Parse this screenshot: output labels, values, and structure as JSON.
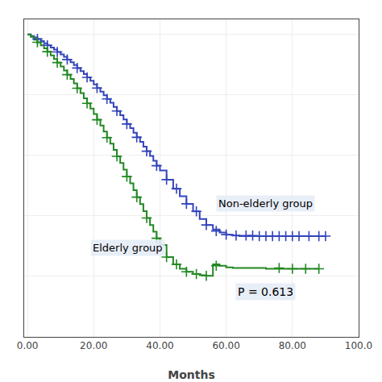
{
  "chart_data": {
    "type": "line",
    "xlabel": "Months",
    "xlim": [
      -1,
      100
    ],
    "ylim": [
      0,
      1.05
    ],
    "xticks": [
      {
        "value": 0,
        "label": "0.00"
      },
      {
        "value": 20,
        "label": "20.00"
      },
      {
        "value": 40,
        "label": "40.00"
      },
      {
        "value": 60,
        "label": "60.00"
      },
      {
        "value": 80,
        "label": "80.00"
      },
      {
        "value": 100,
        "label": "100.0"
      }
    ],
    "yticks": [
      0,
      0.2,
      0.4,
      0.6,
      0.8,
      1.0
    ],
    "tick_labels": "x",
    "grid": true,
    "series": [
      {
        "name": "Non-elderly group",
        "type": "line",
        "line_style": "step",
        "color": "#3344bb",
        "x": [
          0,
          1,
          2,
          3,
          4,
          5,
          6,
          7,
          8,
          9,
          10,
          11,
          12,
          13,
          14,
          15,
          16,
          17,
          18,
          19,
          20,
          21,
          22,
          23,
          24,
          25,
          26,
          27,
          28,
          29,
          30,
          31,
          32,
          33,
          34,
          35,
          36,
          37,
          38,
          39,
          40,
          42,
          44,
          46,
          48,
          50,
          52,
          54,
          56,
          58,
          60,
          62,
          64,
          90
        ],
        "values": [
          1.0,
          0.995,
          0.99,
          0.985,
          0.978,
          0.971,
          0.964,
          0.957,
          0.95,
          0.942,
          0.934,
          0.926,
          0.917,
          0.908,
          0.899,
          0.889,
          0.879,
          0.869,
          0.858,
          0.847,
          0.835,
          0.823,
          0.811,
          0.799,
          0.787,
          0.774,
          0.76,
          0.747,
          0.733,
          0.719,
          0.704,
          0.69,
          0.675,
          0.66,
          0.645,
          0.629,
          0.614,
          0.598,
          0.582,
          0.566,
          0.55,
          0.52,
          0.49,
          0.465,
          0.44,
          0.415,
          0.39,
          0.37,
          0.355,
          0.345,
          0.338,
          0.335,
          0.333,
          0.333
        ]
      },
      {
        "name": "Elderly group",
        "type": "line",
        "line_style": "step",
        "color": "#228822",
        "x": [
          0,
          1,
          2,
          3,
          4,
          5,
          6,
          7,
          8,
          9,
          10,
          11,
          12,
          13,
          14,
          15,
          16,
          17,
          18,
          19,
          20,
          21,
          22,
          23,
          24,
          25,
          26,
          27,
          28,
          29,
          30,
          31,
          32,
          33,
          34,
          35,
          36,
          37,
          38,
          39,
          40,
          42,
          44,
          46,
          48,
          50,
          52,
          54,
          56,
          58,
          60,
          62,
          70,
          72,
          88
        ],
        "values": [
          1.0,
          0.992,
          0.983,
          0.974,
          0.964,
          0.954,
          0.943,
          0.931,
          0.919,
          0.907,
          0.894,
          0.881,
          0.867,
          0.853,
          0.838,
          0.822,
          0.806,
          0.789,
          0.772,
          0.755,
          0.737,
          0.718,
          0.699,
          0.679,
          0.659,
          0.639,
          0.618,
          0.597,
          0.575,
          0.553,
          0.53,
          0.508,
          0.485,
          0.462,
          0.439,
          0.416,
          0.393,
          0.37,
          0.348,
          0.326,
          0.304,
          0.264,
          0.24,
          0.225,
          0.215,
          0.208,
          0.204,
          0.202,
          0.24,
          0.235,
          0.23,
          0.228,
          0.228,
          0.225,
          0.225
        ]
      },
      {
        "type": "scatter",
        "marker": "+",
        "color": "#3344bb",
        "x": [
          3,
          6,
          9,
          12,
          15,
          18,
          21,
          24,
          27,
          30,
          33,
          36,
          39,
          42,
          45,
          48,
          51,
          54,
          57,
          60,
          63,
          66,
          68,
          70,
          72,
          74,
          76,
          78,
          80,
          82,
          85,
          88,
          90
        ],
        "values": [
          0.985,
          0.964,
          0.942,
          0.917,
          0.889,
          0.858,
          0.823,
          0.787,
          0.747,
          0.704,
          0.66,
          0.614,
          0.566,
          0.52,
          0.49,
          0.44,
          0.415,
          0.37,
          0.35,
          0.338,
          0.335,
          0.335,
          0.335,
          0.333,
          0.333,
          0.333,
          0.333,
          0.333,
          0.333,
          0.333,
          0.333,
          0.333,
          0.333
        ]
      },
      {
        "type": "scatter",
        "marker": "+",
        "color": "#228822",
        "x": [
          3,
          6,
          9,
          12,
          15,
          18,
          21,
          24,
          27,
          30,
          33,
          36,
          39,
          42,
          45,
          48,
          51,
          54,
          57,
          76,
          80,
          84,
          88
        ],
        "values": [
          0.974,
          0.943,
          0.907,
          0.867,
          0.822,
          0.772,
          0.718,
          0.659,
          0.597,
          0.53,
          0.462,
          0.393,
          0.326,
          0.264,
          0.24,
          0.215,
          0.208,
          0.202,
          0.235,
          0.228,
          0.225,
          0.225,
          0.225
        ]
      }
    ],
    "annotations": [
      {
        "text": "Non-elderly group",
        "x": 57,
        "y": 0.44
      },
      {
        "text": "Elderly group",
        "x": 19,
        "y": 0.295
      },
      {
        "text": "P = 0.613",
        "x": 72,
        "y": 0.15
      }
    ]
  }
}
